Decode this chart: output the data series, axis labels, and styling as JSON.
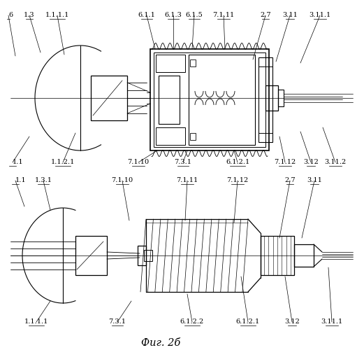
{
  "background_color": "#ffffff",
  "line_color": "#000000",
  "fig_label": "Фиг. 2б",
  "lw_main": 1.0,
  "lw_thin": 0.6,
  "lw_axis": 0.5,
  "fs_label": 7.0
}
